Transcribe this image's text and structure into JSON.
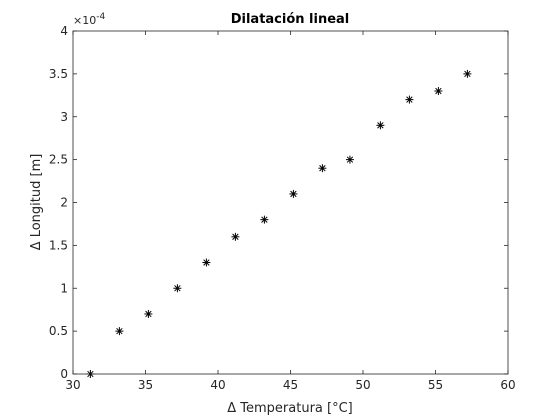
{
  "chart_data": {
    "type": "scatter",
    "title": "Dilatación lineal",
    "xlabel": "Δ Temperatura [°C]",
    "ylabel": "Δ Longitud [m]",
    "xlim": [
      30,
      60
    ],
    "ylim": [
      0,
      0.0004
    ],
    "y_exponent_label": "×10",
    "y_exponent_power": "-4",
    "x_ticks": [
      "30",
      "35",
      "40",
      "45",
      "50",
      "55",
      "60"
    ],
    "y_ticks": [
      "0",
      "0.5",
      "1",
      "1.5",
      "2",
      "2.5",
      "3",
      "3.5",
      "4"
    ],
    "marker": "asterisk",
    "marker_color": "#000000",
    "grid": false,
    "series": [
      {
        "x": [
          31.2,
          33.2,
          35.2,
          37.2,
          39.2,
          41.2,
          43.2,
          45.2,
          47.2,
          49.1,
          51.2,
          53.2,
          55.2,
          57.2
        ],
        "y": [
          0.0,
          5e-05,
          7e-05,
          0.0001,
          0.00013,
          0.00016,
          0.00018,
          0.00021,
          0.00024,
          0.00025,
          0.00029,
          0.00032,
          0.00033,
          0.00035
        ]
      }
    ]
  }
}
